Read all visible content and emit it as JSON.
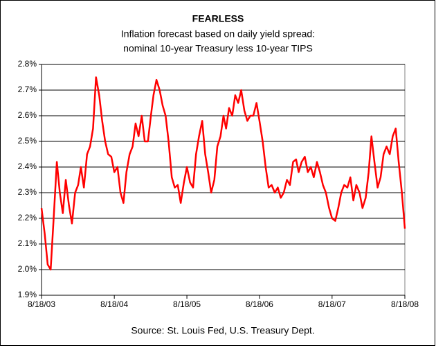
{
  "chart_data": {
    "type": "line",
    "title": "FEARLESS",
    "subtitle": [
      "Inflation forecast based on daily yield spread:",
      "nominal 10-year Treasury less 10-year TIPS"
    ],
    "source": "Source: St. Louis Fed, U.S. Treasury Dept.",
    "x": [
      "2003-08-18",
      "2003-09-03",
      "2003-09-18",
      "2003-10-03",
      "2003-10-18",
      "2003-11-03",
      "2003-11-18",
      "2003-12-03",
      "2003-12-18",
      "2004-01-03",
      "2004-01-18",
      "2004-02-03",
      "2004-02-18",
      "2004-03-03",
      "2004-03-18",
      "2004-04-03",
      "2004-04-18",
      "2004-05-03",
      "2004-05-18",
      "2004-06-03",
      "2004-06-18",
      "2004-07-03",
      "2004-07-18",
      "2004-08-03",
      "2004-08-18",
      "2004-09-03",
      "2004-09-18",
      "2004-10-03",
      "2004-10-18",
      "2004-11-03",
      "2004-11-18",
      "2004-12-03",
      "2004-12-18",
      "2005-01-03",
      "2005-01-18",
      "2005-02-03",
      "2005-02-18",
      "2005-03-03",
      "2005-03-18",
      "2005-04-03",
      "2005-04-18",
      "2005-05-03",
      "2005-05-18",
      "2005-06-03",
      "2005-06-18",
      "2005-07-03",
      "2005-07-18",
      "2005-08-03",
      "2005-08-18",
      "2005-09-03",
      "2005-09-18",
      "2005-10-03",
      "2005-10-18",
      "2005-11-03",
      "2005-11-18",
      "2005-12-03",
      "2005-12-18",
      "2006-01-03",
      "2006-01-18",
      "2006-02-03",
      "2006-02-18",
      "2006-03-03",
      "2006-03-18",
      "2006-04-03",
      "2006-04-18",
      "2006-05-03",
      "2006-05-18",
      "2006-06-03",
      "2006-06-18",
      "2006-07-03",
      "2006-07-18",
      "2006-08-03",
      "2006-08-18",
      "2006-09-03",
      "2006-09-18",
      "2006-10-03",
      "2006-10-18",
      "2006-11-03",
      "2006-11-18",
      "2006-12-03",
      "2006-12-18",
      "2007-01-03",
      "2007-01-18",
      "2007-02-03",
      "2007-02-18",
      "2007-03-03",
      "2007-03-18",
      "2007-04-03",
      "2007-04-18",
      "2007-05-03",
      "2007-05-18",
      "2007-06-03",
      "2007-06-18",
      "2007-07-03",
      "2007-07-18",
      "2007-08-03",
      "2007-08-18",
      "2007-09-03",
      "2007-09-18",
      "2007-10-03",
      "2007-10-18",
      "2007-11-03",
      "2007-11-18",
      "2007-12-03",
      "2007-12-18",
      "2008-01-03",
      "2008-01-18",
      "2008-02-03",
      "2008-02-18",
      "2008-03-03",
      "2008-03-18",
      "2008-04-03",
      "2008-04-18",
      "2008-05-03",
      "2008-05-18",
      "2008-06-03",
      "2008-06-18",
      "2008-07-03",
      "2008-07-18",
      "2008-08-03",
      "2008-08-18"
    ],
    "series": [
      {
        "name": "Yield spread",
        "color": "#ff0000",
        "values": [
          2.24,
          2.14,
          2.02,
          2.0,
          2.2,
          2.42,
          2.3,
          2.22,
          2.35,
          2.25,
          2.18,
          2.3,
          2.33,
          2.4,
          2.32,
          2.45,
          2.48,
          2.55,
          2.75,
          2.68,
          2.58,
          2.5,
          2.45,
          2.44,
          2.38,
          2.4,
          2.3,
          2.26,
          2.38,
          2.45,
          2.48,
          2.57,
          2.52,
          2.6,
          2.5,
          2.5,
          2.6,
          2.68,
          2.74,
          2.7,
          2.64,
          2.6,
          2.5,
          2.36,
          2.32,
          2.33,
          2.26,
          2.34,
          2.4,
          2.34,
          2.32,
          2.45,
          2.52,
          2.58,
          2.45,
          2.38,
          2.3,
          2.35,
          2.48,
          2.52,
          2.6,
          2.55,
          2.63,
          2.6,
          2.68,
          2.65,
          2.7,
          2.62,
          2.58,
          2.6,
          2.6,
          2.65,
          2.58,
          2.5,
          2.4,
          2.32,
          2.33,
          2.3,
          2.32,
          2.28,
          2.3,
          2.35,
          2.33,
          2.42,
          2.43,
          2.38,
          2.42,
          2.44,
          2.38,
          2.4,
          2.36,
          2.42,
          2.38,
          2.33,
          2.3,
          2.24,
          2.2,
          2.19,
          2.24,
          2.3,
          2.33,
          2.32,
          2.36,
          2.27,
          2.33,
          2.3,
          2.24,
          2.28,
          2.38,
          2.52,
          2.42,
          2.32,
          2.36,
          2.45,
          2.48,
          2.45,
          2.52,
          2.55,
          2.42,
          2.3,
          2.16
        ]
      }
    ],
    "xlim": [
      "2003-08-18",
      "2008-08-18"
    ],
    "xticks": [
      {
        "value": "2003-08-18",
        "label": "8/18/03"
      },
      {
        "value": "2004-08-18",
        "label": "8/18/04"
      },
      {
        "value": "2005-08-18",
        "label": "8/18/05"
      },
      {
        "value": "2006-08-18",
        "label": "8/18/06"
      },
      {
        "value": "2007-08-18",
        "label": "8/18/07"
      },
      {
        "value": "2008-08-18",
        "label": "8/18/08"
      }
    ],
    "ylim": [
      1.9,
      2.8
    ],
    "yticks": [
      {
        "value": 1.9,
        "label": "1.9%"
      },
      {
        "value": 2.0,
        "label": "2.0%"
      },
      {
        "value": 2.1,
        "label": "2.1%"
      },
      {
        "value": 2.2,
        "label": "2.2%"
      },
      {
        "value": 2.3,
        "label": "2.3%"
      },
      {
        "value": 2.4,
        "label": "2.4%"
      },
      {
        "value": 2.5,
        "label": "2.5%"
      },
      {
        "value": 2.6,
        "label": "2.6%"
      },
      {
        "value": 2.7,
        "label": "2.7%"
      },
      {
        "value": 2.8,
        "label": "2.8%"
      }
    ],
    "grid": true
  }
}
